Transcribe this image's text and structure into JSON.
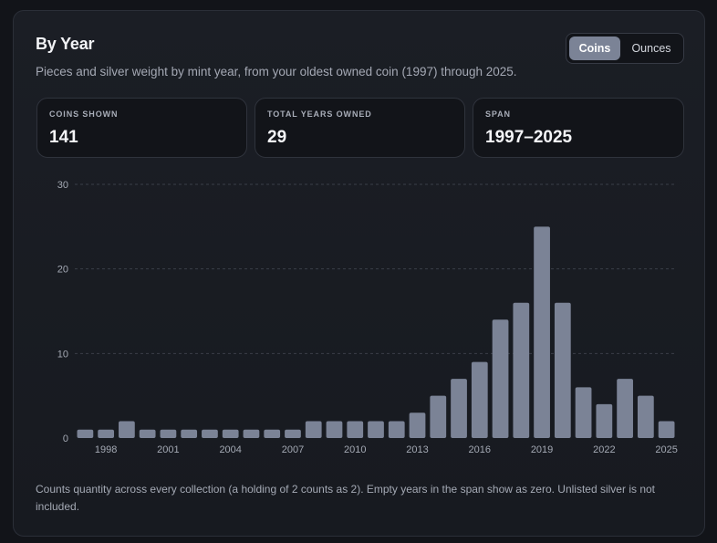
{
  "header": {
    "title": "By Year",
    "subtitle": "Pieces and silver weight by mint year, from your oldest owned coin (1997) through 2025."
  },
  "toggle": {
    "options": [
      "Coins",
      "Ounces"
    ],
    "selected": "Coins"
  },
  "stats": [
    {
      "label": "COINS SHOWN",
      "value": "141"
    },
    {
      "label": "TOTAL YEARS OWNED",
      "value": "29"
    },
    {
      "label": "SPAN",
      "value": "1997–2025"
    }
  ],
  "chart_data": {
    "type": "bar",
    "categories": [
      1997,
      1998,
      1999,
      2000,
      2001,
      2002,
      2003,
      2004,
      2005,
      2006,
      2007,
      2008,
      2009,
      2010,
      2011,
      2012,
      2013,
      2014,
      2015,
      2016,
      2017,
      2018,
      2019,
      2020,
      2021,
      2022,
      2023,
      2024,
      2025
    ],
    "values": [
      1,
      1,
      2,
      1,
      1,
      1,
      1,
      1,
      1,
      1,
      1,
      2,
      2,
      2,
      2,
      2,
      3,
      5,
      7,
      9,
      14,
      16,
      25,
      16,
      6,
      4,
      7,
      5,
      2
    ],
    "x_tick_labels": [
      "1998",
      "2001",
      "2004",
      "2007",
      "2010",
      "2013",
      "2016",
      "2019",
      "2022",
      "2025"
    ],
    "y_ticks": [
      0,
      10,
      20,
      30
    ],
    "ylim": [
      0,
      30
    ],
    "grid": "horizontal-dashed",
    "bar_color": "#7b8396"
  },
  "footnote": "Counts quantity across every collection (a holding of 2 counts as 2). Empty years in the span show as zero. Unlisted silver is not included."
}
